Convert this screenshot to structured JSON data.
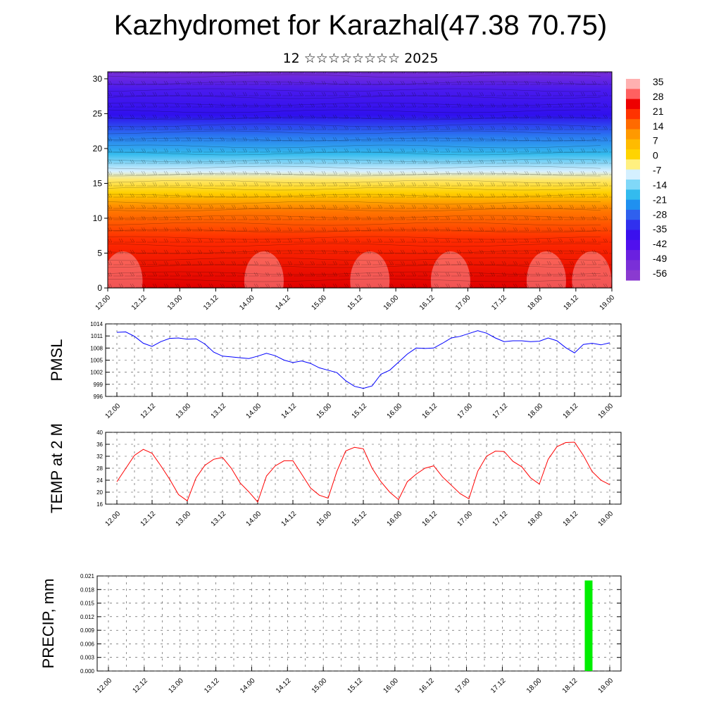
{
  "title": "Kazhydromet for Karazhal(47.38 70.75)",
  "subtitle": "12 ☆☆☆☆☆☆☆☆ 2025",
  "chart_data": [
    {
      "type": "heatmap",
      "name": "cross-section",
      "ylim": [
        0,
        31
      ],
      "yticks": [
        "0",
        "5",
        "10",
        "15",
        "20",
        "25",
        "30"
      ],
      "xticks": [
        "12.00",
        "12.12",
        "13.00",
        "13.12",
        "14.00",
        "14.12",
        "15.00",
        "15.12",
        "16.00",
        "16.12",
        "17.00",
        "17.12",
        "18.00",
        "18.12",
        "19.00"
      ],
      "colorbar_labels": [
        "35",
        "28",
        "21",
        "14",
        "7",
        "0",
        "-7",
        "-14",
        "-21",
        "-28",
        "-35",
        "-42",
        "-49",
        "-56"
      ],
      "levels": [
        35,
        30,
        26,
        22,
        18,
        14,
        10,
        6,
        2,
        -3,
        -8,
        -14,
        -20,
        -27,
        -34,
        -40,
        -47,
        -52,
        -57,
        -61
      ],
      "colors": {
        "warm": "#e00000",
        "hot": "#ff9a9a",
        "yellow": "#ffd000",
        "cyan": "#33bbee",
        "blue": "#3010ee",
        "violet": "#7a2fd8"
      }
    },
    {
      "type": "line",
      "ylabel": "PMSL",
      "ylim": [
        996,
        1014
      ],
      "yticks": [
        "996",
        "999",
        "1002",
        "1005",
        "1008",
        "1011",
        "1014"
      ],
      "xticks": [
        "12.00",
        "12.12",
        "13.00",
        "13.12",
        "14.00",
        "14.12",
        "15.00",
        "15.12",
        "16.00",
        "16.12",
        "17.00",
        "17.12",
        "18.00",
        "18.12",
        "19.00"
      ],
      "color": "#0000ff",
      "values": [
        1011.9,
        1012.0,
        1010.9,
        1009.2,
        1008.4,
        1009.6,
        1010.4,
        1010.5,
        1010.2,
        1010.3,
        1009.0,
        1007.0,
        1006.0,
        1005.8,
        1005.6,
        1005.4,
        1006.0,
        1006.7,
        1006.1,
        1005.0,
        1004.4,
        1004.8,
        1004.2,
        1003.1,
        1002.5,
        1001.9,
        999.9,
        998.5,
        998.0,
        998.6,
        1001.5,
        1002.5,
        1004.5,
        1006.5,
        1008.0,
        1007.9,
        1008.0,
        1009.2,
        1010.5,
        1010.9,
        1011.6,
        1012.3,
        1011.7,
        1010.5,
        1009.6,
        1009.8,
        1009.8,
        1009.6,
        1009.7,
        1010.5,
        1009.8,
        1008.1,
        1006.8,
        1008.9,
        1009.2,
        1008.8,
        1009.3
      ]
    },
    {
      "type": "line",
      "ylabel": "TEMP at 2 M",
      "ylim": [
        16,
        40
      ],
      "yticks": [
        "16",
        "20",
        "24",
        "28",
        "32",
        "36",
        "40"
      ],
      "xticks": [
        "12.00",
        "12.12",
        "13.00",
        "13.12",
        "14.00",
        "14.12",
        "15.00",
        "15.12",
        "16.00",
        "16.12",
        "17.00",
        "17.12",
        "18.00",
        "18.12",
        "19.00"
      ],
      "color": "#ff0000",
      "values": [
        23.5,
        27.9,
        32.3,
        34.3,
        33.0,
        28.8,
        24.3,
        19.2,
        17.1,
        24.8,
        29.0,
        31.0,
        31.6,
        28.0,
        23.1,
        20.1,
        16.7,
        25.4,
        28.8,
        30.5,
        30.5,
        26.0,
        21.4,
        19.0,
        18.0,
        27.0,
        33.8,
        35.0,
        34.5,
        28.0,
        23.5,
        20.0,
        17.5,
        23.5,
        26.0,
        28.0,
        28.8,
        25.1,
        22.3,
        19.5,
        17.8,
        27.0,
        32.0,
        33.7,
        33.6,
        30.3,
        28.5,
        24.8,
        22.7,
        31.0,
        35.2,
        36.6,
        36.7,
        32.3,
        26.9,
        24.0,
        22.5
      ]
    },
    {
      "type": "bar",
      "ylabel": "PRECIP, mm",
      "ylim": [
        0,
        0.021
      ],
      "yticks": [
        "0.000",
        "0.003",
        "0.006",
        "0.009",
        "0.012",
        "0.015",
        "0.018",
        "0.021"
      ],
      "xticks": [
        "12.00",
        "12.12",
        "13.00",
        "13.12",
        "14.00",
        "14.12",
        "15.00",
        "15.12",
        "16.00",
        "16.12",
        "17.00",
        "17.12",
        "18.00",
        "18.12",
        "19.00"
      ],
      "color": "#00ee00",
      "bars": [
        {
          "x_step": 53.6,
          "value": 0.02
        }
      ]
    }
  ]
}
